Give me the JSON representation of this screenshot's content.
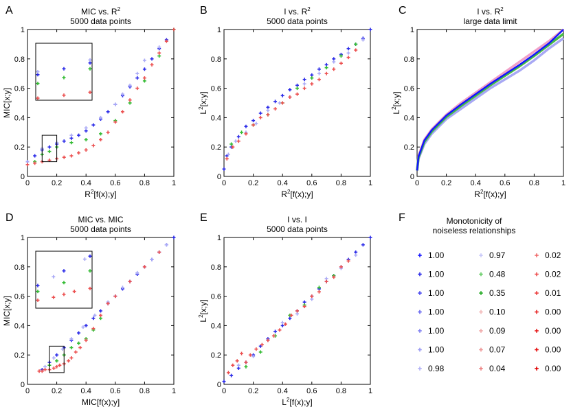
{
  "figure": {
    "legend": {
      "letter": "F",
      "title_lines": [
        "Monotonicity of",
        "noiseless relationships"
      ],
      "entries": [
        {
          "label": "1.00",
          "color": "#1414ff"
        },
        {
          "label": "1.00",
          "color": "#2a2ae8"
        },
        {
          "label": "1.00",
          "color": "#4848f0"
        },
        {
          "label": "1.00",
          "color": "#6666f0"
        },
        {
          "label": "1.00",
          "color": "#8080f2"
        },
        {
          "label": "1.00",
          "color": "#9a9af4"
        },
        {
          "label": "0.98",
          "color": "#b0b0f6"
        },
        {
          "label": "0.97",
          "color": "#c6c6f8"
        },
        {
          "label": "0.48",
          "color": "#66cc66"
        },
        {
          "label": "0.35",
          "color": "#22aa22"
        },
        {
          "label": "0.10",
          "color": "#f2b8b8"
        },
        {
          "label": "0.09",
          "color": "#f0a8a8"
        },
        {
          "label": "0.07",
          "color": "#ee9898"
        },
        {
          "label": "0.04",
          "color": "#ec8080"
        },
        {
          "label": "0.02",
          "color": "#f06868"
        },
        {
          "label": "0.02",
          "color": "#ee5050"
        },
        {
          "label": "0.01",
          "color": "#ec3c3c"
        },
        {
          "label": "0.00",
          "color": "#e82828"
        },
        {
          "label": "0.00",
          "color": "#e61818"
        },
        {
          "label": "0.00",
          "color": "#e60e0e"
        },
        {
          "label": "0.00",
          "color": "#e00000"
        }
      ]
    }
  },
  "chart_data": [
    {
      "panel": "A",
      "type": "scatter",
      "title": [
        "MIC vs. R",
        "5000 data points"
      ],
      "title_sup": "2",
      "xlabel": {
        "pre": "R",
        "sup": "2",
        "post": "[f(x);y]"
      },
      "ylabel": {
        "pre": "MIC[x;y]",
        "sup": "",
        "post": ""
      },
      "xlim": [
        0,
        1
      ],
      "ylim": [
        0,
        1
      ],
      "xticks": [
        "0",
        "0.2",
        "0.4",
        "0.6",
        "0.8",
        "1"
      ],
      "yticks": [
        "0",
        "0.2",
        "0.4",
        "0.6",
        "0.8",
        "1"
      ],
      "inset": {
        "region_x": [
          0.1,
          0.2
        ],
        "region_y": [
          0.1,
          0.28
        ]
      },
      "series": [
        {
          "name": "blue (monotonic)",
          "color": "#2a2ae8",
          "x": [
            0,
            0.05,
            0.1,
            0.15,
            0.2,
            0.25,
            0.3,
            0.35,
            0.4,
            0.45,
            0.5,
            0.55,
            0.6,
            0.65,
            0.7,
            0.75,
            0.8,
            0.85,
            0.9,
            0.95,
            1.0
          ],
          "y": [
            0.1,
            0.14,
            0.18,
            0.2,
            0.22,
            0.24,
            0.26,
            0.28,
            0.31,
            0.35,
            0.39,
            0.44,
            0.49,
            0.55,
            0.61,
            0.67,
            0.73,
            0.8,
            0.87,
            0.93,
            1.0
          ]
        },
        {
          "name": "light blue",
          "color": "#aaaaf6",
          "x": [
            0,
            0.1,
            0.2,
            0.3,
            0.4,
            0.5,
            0.6,
            0.65,
            0.7,
            0.75,
            0.8,
            0.9,
            1.0
          ],
          "y": [
            0.1,
            0.19,
            0.23,
            0.28,
            0.33,
            0.4,
            0.49,
            0.56,
            0.62,
            0.7,
            0.79,
            0.88,
            1.0
          ]
        },
        {
          "name": "green",
          "color": "#33bb33",
          "x": [
            0.05,
            0.1,
            0.15,
            0.2,
            0.3,
            0.4,
            0.5,
            0.6,
            0.7,
            0.8,
            0.9,
            1.0
          ],
          "y": [
            0.1,
            0.15,
            0.17,
            0.2,
            0.23,
            0.25,
            0.29,
            0.38,
            0.5,
            0.65,
            0.82,
            1.0
          ]
        },
        {
          "name": "red (non-monotonic)",
          "color": "#ec5050",
          "x": [
            0.0,
            0.05,
            0.1,
            0.15,
            0.2,
            0.25,
            0.3,
            0.35,
            0.4,
            0.45,
            0.5,
            0.55,
            0.6,
            0.65,
            0.7,
            0.75,
            0.8,
            0.85,
            0.9,
            0.95,
            1.0
          ],
          "y": [
            0.08,
            0.09,
            0.1,
            0.11,
            0.12,
            0.13,
            0.14,
            0.16,
            0.18,
            0.21,
            0.25,
            0.3,
            0.37,
            0.44,
            0.52,
            0.6,
            0.67,
            0.76,
            0.84,
            0.92,
            1.0
          ]
        }
      ]
    },
    {
      "panel": "B",
      "type": "scatter",
      "title": [
        "I vs. R",
        "5000 data points"
      ],
      "title_sup": "2",
      "xlabel": {
        "pre": "R",
        "sup": "2",
        "post": "[f(x);y]"
      },
      "ylabel": {
        "pre": "L",
        "sup": "2",
        "post": "[x;y]"
      },
      "xlim": [
        0,
        1
      ],
      "ylim": [
        0,
        1
      ],
      "xticks": [
        "0",
        "0.2",
        "0.4",
        "0.6",
        "0.8",
        "1"
      ],
      "yticks": [
        "0",
        "0.2",
        "0.4",
        "0.6",
        "0.8",
        "1"
      ],
      "series": [
        {
          "name": "blue",
          "color": "#2a2ae8",
          "x": [
            0,
            0.02,
            0.05,
            0.1,
            0.15,
            0.2,
            0.25,
            0.3,
            0.35,
            0.4,
            0.45,
            0.5,
            0.55,
            0.6,
            0.65,
            0.7,
            0.75,
            0.8,
            0.85,
            0.9,
            0.95,
            1.0
          ],
          "y": [
            0.05,
            0.14,
            0.2,
            0.27,
            0.34,
            0.38,
            0.43,
            0.47,
            0.51,
            0.55,
            0.59,
            0.62,
            0.66,
            0.69,
            0.73,
            0.76,
            0.8,
            0.83,
            0.87,
            0.9,
            0.94,
            1.0
          ]
        },
        {
          "name": "light blue",
          "color": "#aaaaf6",
          "x": [
            0.03,
            0.08,
            0.15,
            0.22,
            0.3,
            0.38,
            0.45,
            0.55,
            0.65,
            0.75,
            0.85,
            0.95
          ],
          "y": [
            0.15,
            0.24,
            0.3,
            0.36,
            0.45,
            0.5,
            0.54,
            0.63,
            0.7,
            0.78,
            0.84,
            0.93
          ]
        },
        {
          "name": "green",
          "color": "#33bb33",
          "x": [
            0.05,
            0.12,
            0.2,
            0.3,
            0.4,
            0.5,
            0.6,
            0.7,
            0.8,
            0.9
          ],
          "y": [
            0.22,
            0.3,
            0.35,
            0.42,
            0.5,
            0.6,
            0.67,
            0.74,
            0.82,
            0.9
          ]
        },
        {
          "name": "red",
          "color": "#ec5050",
          "x": [
            0.02,
            0.06,
            0.1,
            0.15,
            0.2,
            0.25,
            0.3,
            0.35,
            0.4,
            0.45,
            0.5,
            0.55,
            0.6,
            0.65,
            0.7,
            0.75,
            0.8,
            0.85,
            0.9
          ],
          "y": [
            0.12,
            0.2,
            0.24,
            0.29,
            0.35,
            0.4,
            0.42,
            0.46,
            0.5,
            0.54,
            0.56,
            0.6,
            0.63,
            0.66,
            0.7,
            0.73,
            0.77,
            0.81,
            0.86
          ]
        }
      ]
    },
    {
      "panel": "C",
      "type": "line",
      "title": [
        "I vs. R",
        "large data limit"
      ],
      "title_sup": "2",
      "xlabel": {
        "pre": "R",
        "sup": "2",
        "post": "[f(x);y]"
      },
      "ylabel": {
        "pre": "L",
        "sup": "2",
        "post": "[x;y]"
      },
      "xlim": [
        0,
        1
      ],
      "ylim": [
        0,
        1
      ],
      "xticks": [
        "0",
        "0.2",
        "0.4",
        "0.6",
        "0.8",
        "1"
      ],
      "yticks": [
        "0",
        "0.2",
        "0.4",
        "0.6",
        "0.8",
        "1"
      ],
      "series": [
        {
          "name": "pink",
          "color": "#f0a0c8",
          "x": [
            0,
            0.01,
            0.05,
            0.1,
            0.2,
            0.3,
            0.4,
            0.5,
            0.6,
            0.7,
            0.8,
            0.9,
            1.0
          ],
          "y": [
            0.04,
            0.14,
            0.25,
            0.32,
            0.42,
            0.5,
            0.57,
            0.64,
            0.71,
            0.78,
            0.85,
            0.92,
            1.0
          ]
        },
        {
          "name": "light blue",
          "color": "#a8a8f4",
          "x": [
            0,
            0.01,
            0.05,
            0.1,
            0.2,
            0.3,
            0.4,
            0.5,
            0.6,
            0.7,
            0.8,
            0.9,
            1.0
          ],
          "y": [
            0.04,
            0.12,
            0.22,
            0.29,
            0.39,
            0.46,
            0.53,
            0.6,
            0.66,
            0.72,
            0.79,
            0.87,
            0.94
          ]
        },
        {
          "name": "green",
          "color": "#44bb44",
          "x": [
            0,
            0.01,
            0.05,
            0.1,
            0.2,
            0.3,
            0.4,
            0.5,
            0.6,
            0.7,
            0.8,
            0.9,
            1.0
          ],
          "y": [
            0.04,
            0.13,
            0.235,
            0.305,
            0.405,
            0.48,
            0.55,
            0.62,
            0.685,
            0.75,
            0.82,
            0.895,
            0.97
          ]
        },
        {
          "name": "blue",
          "color": "#1414ff",
          "x": [
            0,
            0.01,
            0.05,
            0.1,
            0.2,
            0.3,
            0.4,
            0.5,
            0.6,
            0.7,
            0.8,
            0.9,
            1.0
          ],
          "y": [
            0.04,
            0.135,
            0.245,
            0.315,
            0.415,
            0.49,
            0.56,
            0.63,
            0.695,
            0.76,
            0.83,
            0.905,
            1.0
          ]
        }
      ]
    },
    {
      "panel": "D",
      "type": "scatter",
      "title": [
        "MIC vs. MIC",
        "5000 data points"
      ],
      "title_sup": "",
      "xlabel": {
        "pre": "MIC[f(x);y]",
        "sup": "",
        "post": ""
      },
      "ylabel": {
        "pre": "MIC[x;y]",
        "sup": "",
        "post": ""
      },
      "xlim": [
        0,
        1
      ],
      "ylim": [
        0,
        1
      ],
      "xticks": [
        "0",
        "0.2",
        "0.4",
        "0.6",
        "0.8",
        "1"
      ],
      "yticks": [
        "0",
        "0.2",
        "0.4",
        "0.6",
        "0.8",
        "1"
      ],
      "inset": {
        "region_x": [
          0.15,
          0.25
        ],
        "region_y": [
          0.08,
          0.26
        ]
      },
      "series": [
        {
          "name": "blue",
          "color": "#2a2ae8",
          "x": [
            0.1,
            0.15,
            0.2,
            0.25,
            0.3,
            0.35,
            0.4,
            0.45,
            0.5,
            0.55,
            0.6,
            0.65,
            0.7,
            0.75,
            0.8,
            0.85,
            0.9,
            0.95,
            1.0
          ],
          "y": [
            0.1,
            0.15,
            0.2,
            0.25,
            0.3,
            0.35,
            0.4,
            0.45,
            0.5,
            0.55,
            0.6,
            0.65,
            0.7,
            0.75,
            0.8,
            0.85,
            0.9,
            0.95,
            1.0
          ]
        },
        {
          "name": "light blue",
          "color": "#aaaaf6",
          "x": [
            0.12,
            0.18,
            0.24,
            0.3,
            0.38,
            0.46,
            0.55,
            0.65,
            0.75,
            0.85,
            0.95
          ],
          "y": [
            0.12,
            0.18,
            0.24,
            0.31,
            0.39,
            0.47,
            0.56,
            0.66,
            0.76,
            0.85,
            0.95
          ]
        },
        {
          "name": "green",
          "color": "#33bb33",
          "x": [
            0.15,
            0.2,
            0.25,
            0.3,
            0.35,
            0.4,
            0.45,
            0.5
          ],
          "y": [
            0.13,
            0.16,
            0.2,
            0.25,
            0.28,
            0.31,
            0.37,
            0.45
          ]
        },
        {
          "name": "red",
          "color": "#ec5050",
          "x": [
            0.08,
            0.1,
            0.12,
            0.15,
            0.18,
            0.2,
            0.22,
            0.25,
            0.28,
            0.3,
            0.33,
            0.36,
            0.4,
            0.45,
            0.5,
            0.55,
            0.6,
            0.7,
            0.8,
            0.9
          ],
          "y": [
            0.09,
            0.09,
            0.1,
            0.1,
            0.11,
            0.12,
            0.13,
            0.14,
            0.16,
            0.18,
            0.22,
            0.25,
            0.3,
            0.38,
            0.47,
            0.55,
            0.6,
            0.7,
            0.8,
            0.9
          ]
        }
      ]
    },
    {
      "panel": "E",
      "type": "scatter",
      "title": [
        "I vs. I",
        "5000 data points"
      ],
      "title_sup": "",
      "xlabel": {
        "pre": "L",
        "sup": "2",
        "post": "[f(x);y]"
      },
      "ylabel": {
        "pre": "L",
        "sup": "2",
        "post": "[x;y]"
      },
      "xlim": [
        0,
        1
      ],
      "ylim": [
        0,
        1
      ],
      "xticks": [
        "0",
        "0.2",
        "0.4",
        "0.6",
        "0.8",
        "1"
      ],
      "yticks": [
        "0",
        "0.2",
        "0.4",
        "0.6",
        "0.8",
        "1"
      ],
      "series": [
        {
          "name": "blue",
          "color": "#2a2ae8",
          "x": [
            0,
            0.05,
            0.1,
            0.15,
            0.2,
            0.25,
            0.3,
            0.35,
            0.4,
            0.45,
            0.5,
            0.55,
            0.6,
            0.65,
            0.7,
            0.75,
            0.8,
            0.85,
            0.9,
            0.95,
            1.0
          ],
          "y": [
            0.02,
            0.06,
            0.11,
            0.15,
            0.2,
            0.26,
            0.31,
            0.36,
            0.4,
            0.45,
            0.5,
            0.56,
            0.6,
            0.65,
            0.7,
            0.74,
            0.8,
            0.85,
            0.9,
            0.95,
            1.0
          ]
        },
        {
          "name": "light blue",
          "color": "#aaaaf6",
          "x": [
            0.1,
            0.2,
            0.3,
            0.4,
            0.5,
            0.6,
            0.7,
            0.8,
            0.9
          ],
          "y": [
            0.13,
            0.19,
            0.3,
            0.42,
            0.48,
            0.58,
            0.72,
            0.79,
            0.88
          ]
        },
        {
          "name": "green",
          "color": "#33bb33",
          "x": [
            0.15,
            0.25,
            0.35,
            0.45,
            0.55,
            0.65,
            0.75
          ],
          "y": [
            0.12,
            0.22,
            0.33,
            0.47,
            0.54,
            0.66,
            0.74
          ]
        },
        {
          "name": "red",
          "color": "#ec5050",
          "x": [
            0.03,
            0.06,
            0.09,
            0.12,
            0.15,
            0.18,
            0.22,
            0.26,
            0.3,
            0.34,
            0.38,
            0.42,
            0.46,
            0.5,
            0.55,
            0.6,
            0.65,
            0.7,
            0.75,
            0.8,
            0.85
          ],
          "y": [
            0.08,
            0.13,
            0.16,
            0.21,
            0.15,
            0.2,
            0.24,
            0.27,
            0.3,
            0.33,
            0.37,
            0.41,
            0.47,
            0.5,
            0.53,
            0.6,
            0.63,
            0.7,
            0.73,
            0.8,
            0.84
          ]
        }
      ]
    }
  ]
}
